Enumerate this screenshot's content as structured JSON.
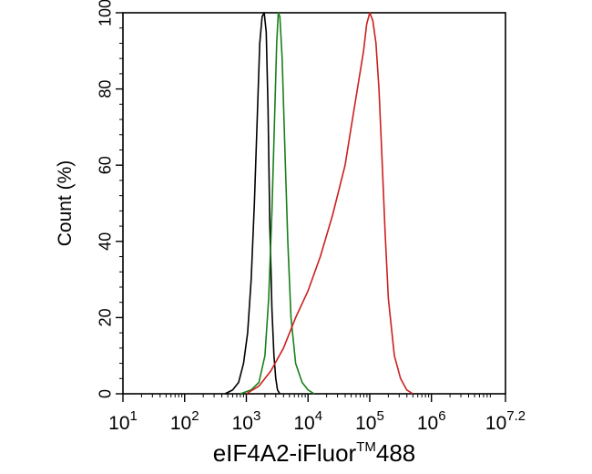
{
  "chart_data": {
    "type": "line",
    "xlabel": "eIF4A2-iFluor",
    "xlabel_sup": "TM",
    "xlabel_suffix": "488",
    "ylabel": "Count  (%)",
    "xscale": "log",
    "xlim": [
      10,
      15848932
    ],
    "ylim": [
      0,
      100
    ],
    "grid": false,
    "legend": "none",
    "x_ticks": [
      {
        "base": "10",
        "exp": "1",
        "value": 10
      },
      {
        "base": "10",
        "exp": "2",
        "value": 100
      },
      {
        "base": "10",
        "exp": "3",
        "value": 1000
      },
      {
        "base": "10",
        "exp": "4",
        "value": 10000
      },
      {
        "base": "10",
        "exp": "5",
        "value": 100000
      },
      {
        "base": "10",
        "exp": "6",
        "value": 1000000
      },
      {
        "base": "10",
        "exp": "7.2",
        "value": 15848932
      }
    ],
    "y_ticks": [
      "0",
      "20",
      "40",
      "60",
      "80",
      "100"
    ],
    "series": [
      {
        "color": "#000000",
        "x": [
          450,
          600,
          750,
          900,
          1050,
          1200,
          1350,
          1500,
          1650,
          1800,
          1950,
          2100,
          2250,
          2400,
          2600,
          2800,
          3000,
          3200,
          3500
        ],
        "y": [
          0,
          1,
          3,
          8,
          16,
          30,
          50,
          72,
          92,
          99,
          100,
          95,
          75,
          45,
          22,
          10,
          4,
          1,
          0
        ]
      },
      {
        "color": "#1a7f1a",
        "x": [
          800,
          1200,
          1600,
          2000,
          2300,
          2600,
          2900,
          3100,
          3300,
          3500,
          3800,
          4200,
          4700,
          5300,
          6300,
          8000,
          10000,
          12600
        ],
        "y": [
          0,
          1,
          3,
          10,
          25,
          48,
          75,
          92,
          100,
          99,
          88,
          65,
          40,
          20,
          8,
          3,
          1,
          0
        ]
      },
      {
        "color": "#cc1f1f",
        "x": [
          1000,
          1600,
          2500,
          4000,
          6300,
          10000,
          15800,
          25100,
          39800,
          50100,
          63100,
          79400,
          89100,
          100000,
          112000,
          126000,
          141000,
          158000,
          178000,
          200000,
          251000,
          316000,
          398000,
          500000
        ],
        "y": [
          0,
          2,
          6,
          12,
          20,
          27,
          36,
          47,
          60,
          70,
          80,
          90,
          97,
          100,
          98,
          92,
          80,
          62,
          42,
          25,
          10,
          4,
          1,
          0
        ]
      }
    ]
  }
}
